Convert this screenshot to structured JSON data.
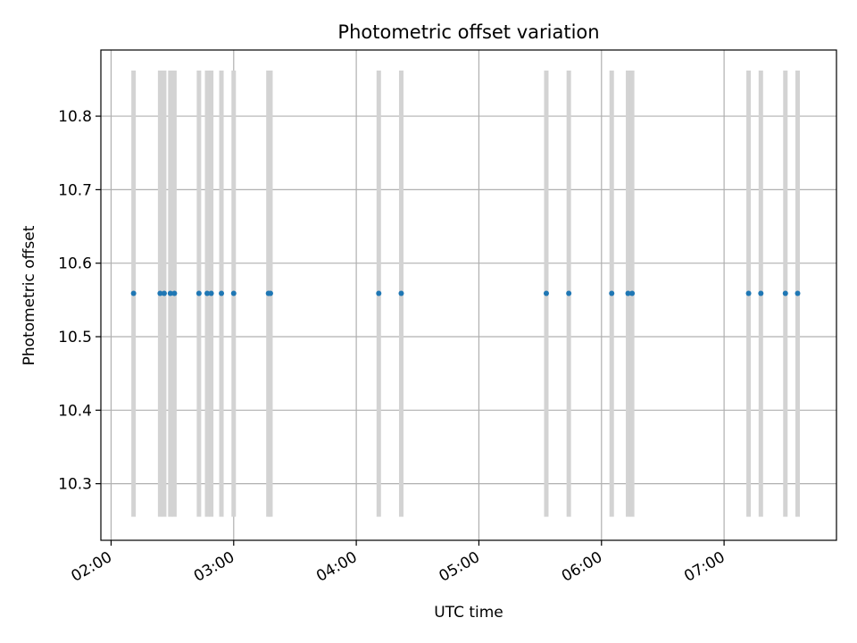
{
  "chart_data": {
    "type": "scatter",
    "title": "Photometric offset variation",
    "xlabel": "UTC time",
    "ylabel": "Photometric offset",
    "x_ticks": [
      "02:00",
      "03:00",
      "04:00",
      "05:00",
      "06:00",
      "07:00"
    ],
    "y_ticks": [
      "10.3",
      "10.4",
      "10.5",
      "10.6",
      "10.7",
      "10.8"
    ],
    "xlim": [
      "01:55",
      "07:55"
    ],
    "ylim": [
      10.223,
      10.89
    ],
    "grid": true,
    "colors": {
      "point": "#1f77b4",
      "band": "#d3d3d3",
      "grid": "#b0b0b0"
    },
    "error_bands": {
      "low": 10.255,
      "high": 10.862
    },
    "points": [
      {
        "x": "02:11",
        "y": 10.559
      },
      {
        "x": "02:24",
        "y": 10.559
      },
      {
        "x": "02:26",
        "y": 10.559
      },
      {
        "x": "02:29",
        "y": 10.559
      },
      {
        "x": "02:31",
        "y": 10.559
      },
      {
        "x": "02:43",
        "y": 10.559
      },
      {
        "x": "02:47",
        "y": 10.559
      },
      {
        "x": "02:49",
        "y": 10.559
      },
      {
        "x": "02:54",
        "y": 10.559
      },
      {
        "x": "03:00",
        "y": 10.559
      },
      {
        "x": "03:17",
        "y": 10.559
      },
      {
        "x": "03:18",
        "y": 10.559
      },
      {
        "x": "04:11",
        "y": 10.559
      },
      {
        "x": "04:22",
        "y": 10.559
      },
      {
        "x": "05:33",
        "y": 10.559
      },
      {
        "x": "05:44",
        "y": 10.559
      },
      {
        "x": "06:05",
        "y": 10.559
      },
      {
        "x": "06:13",
        "y": 10.559
      },
      {
        "x": "06:15",
        "y": 10.559
      },
      {
        "x": "07:12",
        "y": 10.559
      },
      {
        "x": "07:18",
        "y": 10.559
      },
      {
        "x": "07:30",
        "y": 10.559
      },
      {
        "x": "07:36",
        "y": 10.559
      }
    ]
  }
}
